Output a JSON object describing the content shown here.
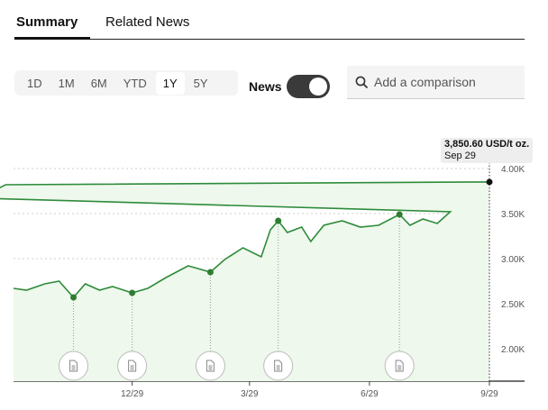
{
  "tabs": [
    {
      "label": "Summary",
      "active": true
    },
    {
      "label": "Related News",
      "active": false
    }
  ],
  "ranges": [
    {
      "label": "1D"
    },
    {
      "label": "1M"
    },
    {
      "label": "6M"
    },
    {
      "label": "YTD"
    },
    {
      "label": "1Y",
      "selected": true
    },
    {
      "label": "5Y"
    }
  ],
  "news_toggle": {
    "label": "News",
    "on": true
  },
  "search": {
    "placeholder": "Add a comparison",
    "icon": "search-icon"
  },
  "tooltip": {
    "value": "3,850.60 USD/t oz.",
    "date": "Sep 29"
  },
  "colors": {
    "line": "#2e8b3a",
    "fill": "#eef8ec",
    "marker": "#2e7d32",
    "current": "#111111"
  },
  "chart_data": {
    "type": "area",
    "x": [
      "9/29",
      "10/9",
      "10/23",
      "11/3",
      "11/14",
      "11/23",
      "12/4",
      "12/14",
      "12/29",
      "1/10",
      "1/24",
      "2/10",
      "2/27",
      "3/10",
      "3/24",
      "4/7",
      "4/14",
      "4/20",
      "4/27",
      "5/8",
      "5/15",
      "5/25",
      "6/8",
      "6/22",
      "7/6",
      "7/22",
      "7/30",
      "8/9",
      "8/20",
      "8/30",
      "9/6",
      "9/16",
      "9/23",
      "9/29"
    ],
    "values": [
      2670,
      2650,
      2720,
      2750,
      2570,
      2720,
      2650,
      2690,
      2620,
      2670,
      2790,
      2920,
      2850,
      2990,
      3120,
      3020,
      3320,
      3420,
      3290,
      3350,
      3190,
      3370,
      3420,
      3350,
      3370,
      3490,
      3370,
      3440,
      3390,
      3520,
      3670,
      3770,
      3820,
      3850.6
    ],
    "ylim": [
      1640,
      4350
    ],
    "yticks": [
      {
        "value": 4000,
        "label": "4.00K"
      },
      {
        "value": 3500,
        "label": "3.50K"
      },
      {
        "value": 3000,
        "label": "3.00K"
      },
      {
        "value": 2500,
        "label": "2.50K"
      },
      {
        "value": 2000,
        "label": "2.00K"
      }
    ],
    "xticks": [
      "12/29",
      "3/29",
      "6/29",
      "9/29"
    ],
    "news_markers": [
      "11/14",
      "12/29",
      "2/27",
      "4/20",
      "7/22"
    ],
    "grid": true
  }
}
